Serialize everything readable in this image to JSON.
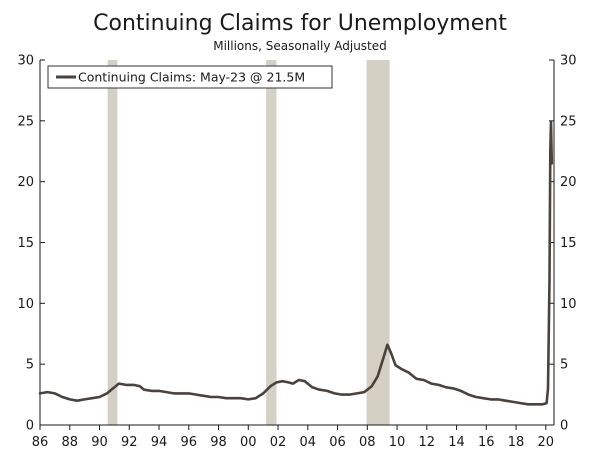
{
  "chart_data": {
    "type": "line",
    "title": "Continuing Claims for Unemployment",
    "subtitle": "Millions, Seasonally Adjusted",
    "xlabel": "",
    "ylabel": "",
    "xlim": [
      1986,
      2020.55
    ],
    "ylim": [
      0,
      30
    ],
    "x_ticks": [
      1986,
      1988,
      1990,
      1992,
      1994,
      1996,
      1998,
      2000,
      2002,
      2004,
      2006,
      2008,
      2010,
      2012,
      2014,
      2016,
      2018,
      2020
    ],
    "x_tick_labels": [
      "86",
      "88",
      "90",
      "92",
      "94",
      "96",
      "98",
      "00",
      "02",
      "04",
      "06",
      "08",
      "10",
      "12",
      "14",
      "16",
      "18",
      "20"
    ],
    "y_ticks": [
      0,
      5,
      10,
      15,
      20,
      25,
      30
    ],
    "y_tick_labels": [
      "0",
      "5",
      "10",
      "15",
      "20",
      "25",
      "30"
    ],
    "grid": false,
    "legend_position": "top-left",
    "line_color": "#4a423c",
    "recession_color": "#d4d0c4",
    "recessions": [
      [
        1990.55,
        1991.2
      ],
      [
        2001.2,
        2001.9
      ],
      [
        2007.95,
        2009.5
      ]
    ],
    "series": [
      {
        "name": "Continuing Claims: May-23 @ 21.5M",
        "x": [
          1986.0,
          1986.5,
          1987.0,
          1987.5,
          1988.0,
          1988.5,
          1989.0,
          1989.5,
          1990.0,
          1990.5,
          1990.9,
          1991.3,
          1991.8,
          1992.3,
          1992.7,
          1993.0,
          1993.5,
          1994.0,
          1994.5,
          1995.0,
          1995.5,
          1996.0,
          1996.5,
          1997.0,
          1997.5,
          1998.0,
          1998.5,
          1999.0,
          1999.5,
          2000.0,
          2000.5,
          2001.0,
          2001.5,
          2001.9,
          2002.3,
          2002.7,
          2003.0,
          2003.4,
          2003.8,
          2004.3,
          2004.8,
          2005.3,
          2005.8,
          2006.3,
          2006.8,
          2007.3,
          2007.8,
          2008.3,
          2008.7,
          2009.1,
          2009.35,
          2009.6,
          2009.9,
          2010.3,
          2010.8,
          2011.3,
          2011.8,
          2012.3,
          2012.8,
          2013.3,
          2013.8,
          2014.3,
          2014.8,
          2015.3,
          2015.8,
          2016.3,
          2016.8,
          2017.3,
          2017.8,
          2018.3,
          2018.8,
          2019.3,
          2019.8,
          2020.05,
          2020.15,
          2020.25,
          2020.3,
          2020.35,
          2020.4
        ],
        "values": [
          2.6,
          2.7,
          2.6,
          2.3,
          2.1,
          2.0,
          2.1,
          2.2,
          2.3,
          2.6,
          3.0,
          3.4,
          3.3,
          3.3,
          3.2,
          2.9,
          2.8,
          2.8,
          2.7,
          2.6,
          2.6,
          2.6,
          2.5,
          2.4,
          2.3,
          2.3,
          2.2,
          2.2,
          2.2,
          2.1,
          2.2,
          2.6,
          3.2,
          3.5,
          3.6,
          3.5,
          3.4,
          3.7,
          3.6,
          3.1,
          2.9,
          2.8,
          2.6,
          2.5,
          2.5,
          2.6,
          2.7,
          3.2,
          4.0,
          5.6,
          6.6,
          5.9,
          4.9,
          4.6,
          4.3,
          3.8,
          3.7,
          3.4,
          3.3,
          3.1,
          3.0,
          2.8,
          2.5,
          2.3,
          2.2,
          2.1,
          2.1,
          2.0,
          1.9,
          1.8,
          1.7,
          1.7,
          1.7,
          1.8,
          3.0,
          11.9,
          22.5,
          24.9,
          21.5
        ]
      }
    ]
  }
}
